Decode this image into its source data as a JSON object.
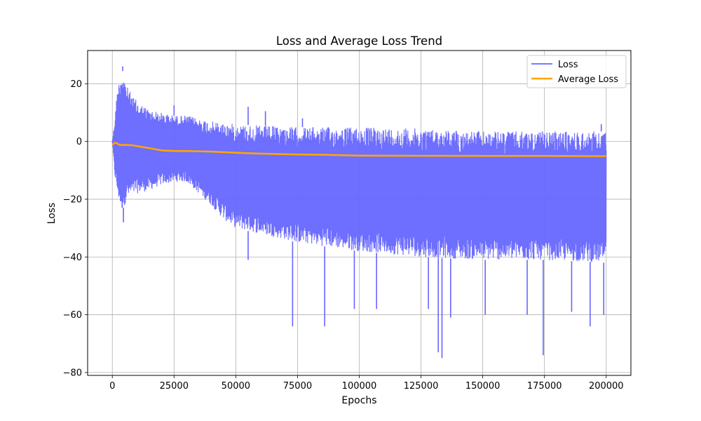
{
  "chart_data": {
    "type": "line",
    "title": "Loss and Average Loss Trend",
    "xlabel": "Epochs",
    "ylabel": "Loss",
    "xlim": [
      -10000,
      210000
    ],
    "ylim": [
      -81,
      31.5
    ],
    "x_ticks": [
      0,
      25000,
      50000,
      75000,
      100000,
      125000,
      150000,
      175000,
      200000
    ],
    "x_tick_labels": [
      "0",
      "25000",
      "50000",
      "75000",
      "100000",
      "125000",
      "150000",
      "175000",
      "200000"
    ],
    "y_ticks": [
      -80,
      -60,
      -40,
      -20,
      0,
      20
    ],
    "y_tick_labels": [
      "−80",
      "−60",
      "−40",
      "−20",
      "0",
      "20"
    ],
    "grid": true,
    "legend_position": "upper right",
    "series": [
      {
        "name": "Loss",
        "color": "#6666ff",
        "style": "noisy band",
        "envelope": {
          "x": [
            0,
            1000,
            2000,
            3000,
            4000,
            5000,
            6000,
            8000,
            10000,
            15000,
            20000,
            25000,
            30000,
            35000,
            40000,
            45000,
            50000,
            60000,
            75000,
            100000,
            125000,
            150000,
            175000,
            200000
          ],
          "upper": [
            0,
            8,
            18,
            22,
            25,
            22,
            19,
            16,
            14,
            11,
            10,
            9,
            9,
            8,
            7,
            6.5,
            6,
            5.5,
            5,
            5,
            4.5,
            3.5,
            3.5,
            3.5
          ],
          "lower": [
            0,
            -12,
            -18,
            -22,
            -24,
            -22,
            -20,
            -19,
            -18,
            -17,
            -15,
            -14,
            -14,
            -18,
            -22,
            -27,
            -30,
            -32,
            -35,
            -38,
            -40,
            -41,
            -41,
            -42
          ]
        },
        "spikes_down": [
          {
            "x": 4500,
            "y": -28
          },
          {
            "x": 55000,
            "y": -41
          },
          {
            "x": 73000,
            "y": -64
          },
          {
            "x": 86000,
            "y": -64
          },
          {
            "x": 98000,
            "y": -58
          },
          {
            "x": 107000,
            "y": -58
          },
          {
            "x": 128000,
            "y": -58
          },
          {
            "x": 132000,
            "y": -73
          },
          {
            "x": 133500,
            "y": -75
          },
          {
            "x": 137000,
            "y": -61
          },
          {
            "x": 151000,
            "y": -60
          },
          {
            "x": 168000,
            "y": -60
          },
          {
            "x": 174500,
            "y": -74
          },
          {
            "x": 186000,
            "y": -59
          },
          {
            "x": 193500,
            "y": -64
          },
          {
            "x": 199000,
            "y": -60
          }
        ],
        "spikes_up": [
          {
            "x": 4200,
            "y": 26
          },
          {
            "x": 25000,
            "y": 12.5
          },
          {
            "x": 55000,
            "y": 12
          },
          {
            "x": 62000,
            "y": 10.5
          },
          {
            "x": 77000,
            "y": 8
          },
          {
            "x": 198000,
            "y": 6
          }
        ]
      },
      {
        "name": "Average Loss",
        "color": "#ffa500",
        "x": [
          0,
          1000,
          2000,
          3000,
          5000,
          8000,
          10000,
          15000,
          20000,
          25000,
          30000,
          35000,
          40000,
          45000,
          50000,
          60000,
          75000,
          85000,
          100000,
          125000,
          150000,
          175000,
          200000
        ],
        "y": [
          -1.2,
          -0.4,
          -0.7,
          -1.2,
          -1.2,
          -1.3,
          -1.6,
          -2.3,
          -3.1,
          -3.3,
          -3.3,
          -3.4,
          -3.5,
          -3.7,
          -3.9,
          -4.2,
          -4.5,
          -4.6,
          -4.9,
          -4.95,
          -5.0,
          -5.0,
          -5.1
        ]
      }
    ]
  }
}
